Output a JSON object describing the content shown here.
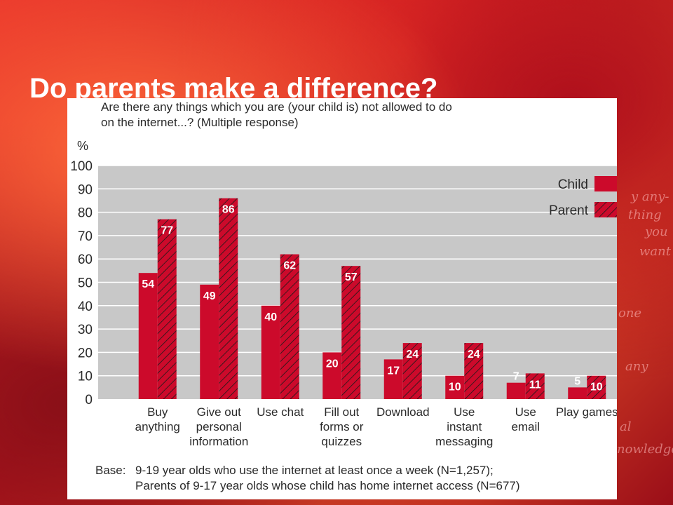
{
  "slide": {
    "title": "Do parents make a difference?"
  },
  "question": {
    "line1": "Are there any things which you are (your child is) not allowed to do",
    "line2": "on the internet...? (Multiple response)"
  },
  "base": {
    "label": "Base:",
    "line1": "9-19 year olds who use the internet at least once a week (N=1,257);",
    "line2": "Parents of 9-17 year olds whose child has home internet access (N=677)"
  },
  "background_scribbles": [
    "y any-",
    "thing",
    "you",
    "want",
    "one",
    "any",
    "al",
    "nowledge"
  ],
  "colors": {
    "bar": "#cc0a2b",
    "plot_background": "#c8c8c8",
    "text": "#2a2a2a",
    "slide_background": "#d42a24"
  },
  "chart_data": {
    "type": "bar",
    "ylabel": "%",
    "ylim": [
      0,
      100
    ],
    "yticks": [
      0,
      10,
      20,
      30,
      40,
      50,
      60,
      70,
      80,
      90,
      100
    ],
    "grid": true,
    "legend_position": "top-right",
    "categories": [
      [
        "Buy",
        "anything"
      ],
      [
        "Give out",
        "personal",
        "information"
      ],
      [
        "Use chat"
      ],
      [
        "Fill out",
        "forms or",
        "quizzes"
      ],
      [
        "Download"
      ],
      [
        "Use",
        "instant",
        "messaging"
      ],
      [
        "Use",
        "email"
      ],
      [
        "Play games"
      ]
    ],
    "series": [
      {
        "name": "Child",
        "pattern": "solid",
        "values": [
          54,
          49,
          40,
          20,
          17,
          10,
          7,
          5
        ]
      },
      {
        "name": "Parent",
        "pattern": "hatched",
        "values": [
          77,
          86,
          62,
          57,
          24,
          24,
          11,
          10
        ]
      }
    ]
  }
}
